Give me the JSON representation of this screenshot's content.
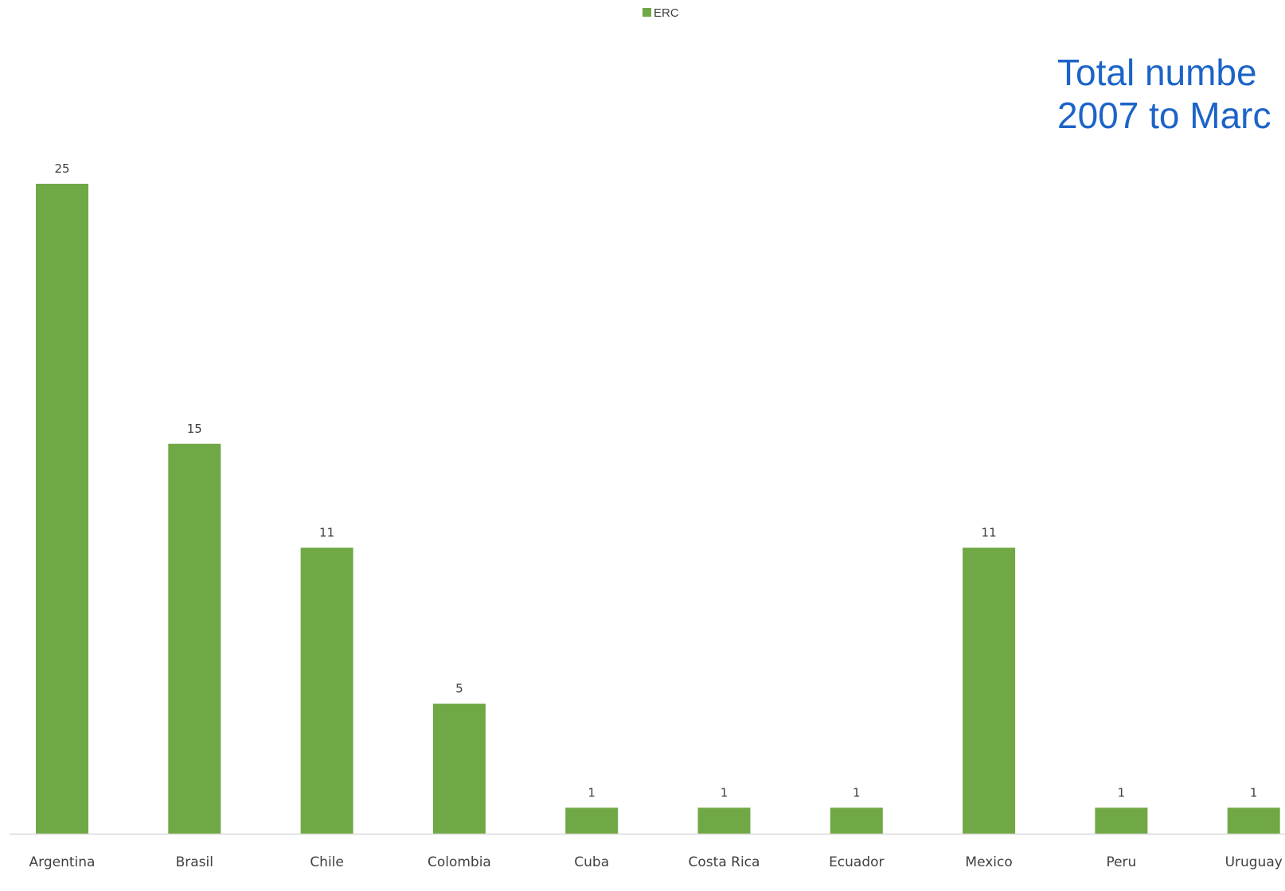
{
  "chart_data": {
    "type": "bar",
    "title_lines": [
      "Total numbe",
      "2007 to Marc"
    ],
    "legend": {
      "label": "ERC",
      "placement": "top-center"
    },
    "categories": [
      "Argentina",
      "Brasil",
      "Chile",
      "Colombia",
      "Cuba",
      "Costa Rica",
      "Ecuador",
      "Mexico",
      "Peru",
      "Uruguay"
    ],
    "series": [
      {
        "name": "ERC",
        "values": [
          25,
          15,
          11,
          5,
          1,
          1,
          1,
          11,
          1,
          1
        ],
        "color": "#70a845"
      }
    ],
    "data_labels": [
      "25",
      "15",
      "11",
      "5",
      "1",
      "1",
      "1",
      "11",
      "1",
      "1"
    ],
    "ylim": [
      0,
      25
    ],
    "grid": false,
    "axis_color": "#d9d9d9",
    "label_color": "#404040",
    "title_color": "#1c64c8"
  }
}
